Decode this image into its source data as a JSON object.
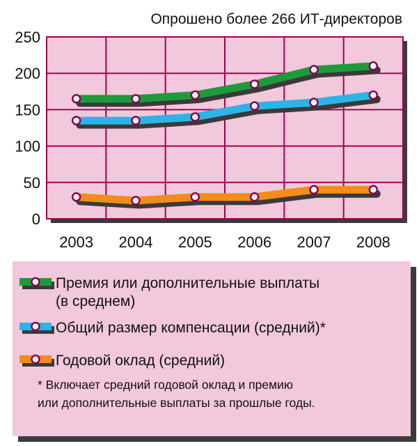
{
  "chart_data": {
    "type": "line",
    "subtitle": "Опрошено более 266 ИТ-директоров",
    "categories": [
      "2003",
      "2004",
      "2005",
      "2006",
      "2007",
      "2008"
    ],
    "ylim": [
      0,
      250
    ],
    "yticks": [
      0,
      50,
      100,
      150,
      200,
      250
    ],
    "grid": true,
    "series": [
      {
        "name": "Премия или дополнительные выплаты (в среднем)",
        "legend_lines": [
          "Премия или дополнительные выплаты",
          "(в среднем)"
        ],
        "color": "#1e9a3c",
        "values": [
          165,
          165,
          170,
          185,
          205,
          210
        ]
      },
      {
        "name": "Общий размер компенсации (средний)*",
        "legend_lines": [
          "Общий размер компенсации (средний)*"
        ],
        "color": "#2db4e6",
        "values": [
          135,
          135,
          140,
          155,
          160,
          170
        ]
      },
      {
        "name": "Годовой оклад (средний)",
        "legend_lines": [
          "Годовой оклад (средний)"
        ],
        "color": "#f28c1a",
        "values": [
          30,
          25,
          30,
          30,
          40,
          40
        ]
      }
    ],
    "footnote_lines": [
      "* Включает средний годовой оклад и премию",
      "или дополнительные выплаты за прошлые годы."
    ]
  },
  "colors": {
    "panel": "#f2c8dc",
    "grid": "#a3004e",
    "shadow": "#3a3a3a",
    "marker_ring": "#8a0050"
  }
}
